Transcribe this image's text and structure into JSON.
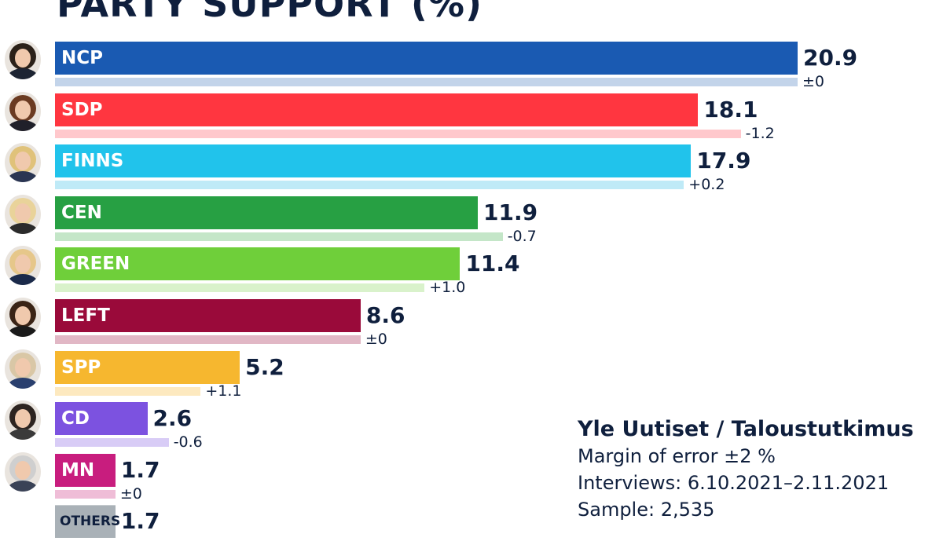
{
  "title": "PARTY SUPPORT (%)",
  "chart_data": {
    "type": "bar",
    "title": "PARTY SUPPORT (%)",
    "orientation": "horizontal",
    "categories": [
      "NCP",
      "SDP",
      "FINNS",
      "CEN",
      "GREEN",
      "LEFT",
      "SPP",
      "CD",
      "MN",
      "OTHERS"
    ],
    "values": [
      20.9,
      18.1,
      17.9,
      11.9,
      11.4,
      8.6,
      5.2,
      2.6,
      1.7,
      1.7
    ],
    "value_labels": [
      "20.9",
      "18.1",
      "17.9",
      "11.9",
      "11.4",
      "8.6",
      "5.2",
      "2.6",
      "1.7",
      "1.7"
    ],
    "changes": [
      "±0",
      "-1.2",
      "+0.2",
      "-0.7",
      "+1.0",
      "±0",
      "+1.1",
      "-0.6",
      "±0",
      ""
    ],
    "previous_values": [
      20.9,
      19.3,
      17.7,
      12.6,
      10.4,
      8.6,
      4.1,
      3.2,
      1.7,
      1.7
    ],
    "colors": [
      "#1a5ab2",
      "#ff3640",
      "#21c3eb",
      "#27a043",
      "#6fcf3a",
      "#9a0a3a",
      "#f6b72f",
      "#7c52e0",
      "#c81d7e",
      "#a9b1b7"
    ],
    "light_colors": [
      "#c3d4ea",
      "#ffc8cc",
      "#bfeaf7",
      "#c4e6c8",
      "#d9f2cb",
      "#e1b7c5",
      "#fde9bf",
      "#d8ccf6",
      "#efbdd7",
      "#dde1e4"
    ],
    "xlim": [
      0,
      20.9
    ]
  },
  "source": {
    "title": "Yle Uutiset / Taloustutkimus",
    "lines": [
      "Margin of error ±2 %",
      "Interviews: 6.10.2021–2.11.2021",
      "Sample: 2,535"
    ]
  }
}
